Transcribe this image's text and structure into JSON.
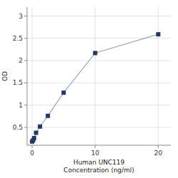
{
  "chart_data": {
    "type": "line",
    "x": [
      0,
      0.156,
      0.313,
      0.625,
      1.25,
      2.5,
      5,
      10,
      20
    ],
    "values": [
      0.183,
      0.21,
      0.26,
      0.38,
      0.52,
      0.76,
      1.28,
      2.17,
      2.59
    ],
    "color": "#1f3864",
    "marker": "square",
    "xlabel": "Human UNC119\nConcentration (ng/ml)",
    "ylabel": "OD",
    "xlim": [
      -0.8,
      22
    ],
    "ylim": [
      0.1,
      3.2
    ],
    "xticks": [
      0,
      10,
      20
    ],
    "yticks": [
      0.5,
      1,
      1.5,
      2,
      2.5,
      3
    ],
    "grid": true
  }
}
